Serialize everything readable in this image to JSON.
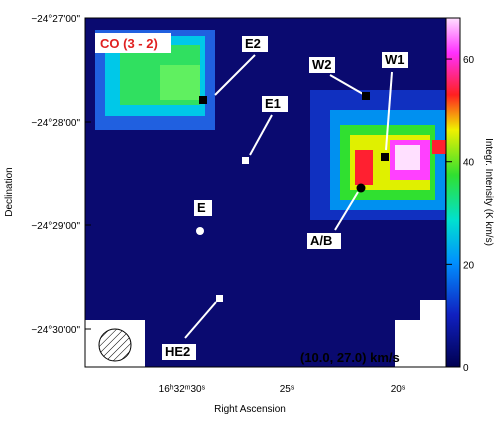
{
  "chart_data": {
    "type": "image",
    "xlabel": "Right Ascension",
    "ylabel": "Declination",
    "xtick_labels": [
      "16ʰ32ᵐ30ˢ",
      "25ˢ",
      "20ˢ"
    ],
    "ytick_labels": [
      "−24°27'00\"",
      "−24°28'00\"",
      "−24°29'00\"",
      "−24°30'00\""
    ],
    "colorbar": {
      "label": "Integr. Intensity (K km/s)",
      "lim": [
        0,
        68
      ],
      "ticks": [
        0,
        20,
        40,
        60
      ]
    },
    "annotations": {
      "line": "CO (3 - 2)",
      "sources": [
        "E2",
        "W2",
        "W1",
        "E1",
        "E",
        "A/B",
        "HE2"
      ],
      "velocity_range": "(10.0, 27.0) km/s"
    }
  }
}
